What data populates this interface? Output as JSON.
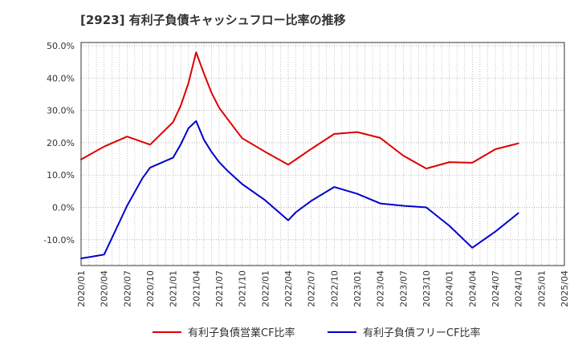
{
  "title": "[2923]  有利子負債キャッシュフロー比率の推移",
  "chart_data": {
    "type": "line",
    "title": "[2923]  有利子負債キャッシュフロー比率の推移",
    "xlabel": "",
    "ylabel": "",
    "ylim": [
      -18,
      51
    ],
    "y_ticks": [
      50,
      40,
      30,
      20,
      10,
      0,
      -10
    ],
    "y_tick_labels": [
      "50.0%",
      "40.0%",
      "30.0%",
      "20.0%",
      "10.0%",
      "0.0%",
      "-10.0%"
    ],
    "x_ticks": [
      "2020/01",
      "2020/04",
      "2020/07",
      "2020/10",
      "2021/01",
      "2021/04",
      "2021/07",
      "2021/10",
      "2022/01",
      "2022/04",
      "2022/07",
      "2022/10",
      "2023/01",
      "2023/04",
      "2023/07",
      "2023/10",
      "2024/01",
      "2024/04",
      "2024/07",
      "2024/10",
      "2025/01",
      "2025/04"
    ],
    "grid": true,
    "legend_position": "bottom",
    "series": [
      {
        "name": "有利子負債営業CF比率",
        "color": "#dd0000",
        "x": [
          "2020/01",
          "2020/04",
          "2020/07",
          "2020/10",
          "2021/01",
          "2021/02",
          "2021/03",
          "2021/04",
          "2021/05",
          "2021/06",
          "2021/07",
          "2021/09",
          "2021/10",
          "2022/01",
          "2022/04",
          "2022/07",
          "2022/10",
          "2023/01",
          "2023/04",
          "2023/07",
          "2023/10",
          "2024/01",
          "2024/04",
          "2024/07",
          "2024/10"
        ],
        "values": [
          14.8,
          18.8,
          21.9,
          19.4,
          26.4,
          31.5,
          38.5,
          48.0,
          41.5,
          35.5,
          30.8,
          24.5,
          21.4,
          17.2,
          13.2,
          18.1,
          22.7,
          23.3,
          21.5,
          16.0,
          12.0,
          14.0,
          13.8,
          18.0,
          19.8
        ]
      },
      {
        "name": "有利子負債フリーCF比率",
        "color": "#0000cc",
        "x": [
          "2020/01",
          "2020/04",
          "2020/07",
          "2020/09",
          "2020/10",
          "2021/01",
          "2021/02",
          "2021/03",
          "2021/04",
          "2021/05",
          "2021/06",
          "2021/07",
          "2021/08",
          "2021/10",
          "2022/01",
          "2022/04",
          "2022/05",
          "2022/07",
          "2022/10",
          "2023/01",
          "2023/04",
          "2023/07",
          "2023/10",
          "2024/01",
          "2024/04",
          "2024/07",
          "2024/10"
        ],
        "values": [
          -15.8,
          -14.6,
          0.5,
          9.0,
          12.3,
          15.4,
          19.5,
          24.5,
          26.7,
          21.0,
          17.2,
          14.0,
          11.5,
          7.2,
          2.2,
          -4.0,
          -1.5,
          2.0,
          6.3,
          4.2,
          1.2,
          0.5,
          0.0,
          -5.7,
          -12.5,
          -7.5,
          -1.8
        ]
      }
    ]
  }
}
